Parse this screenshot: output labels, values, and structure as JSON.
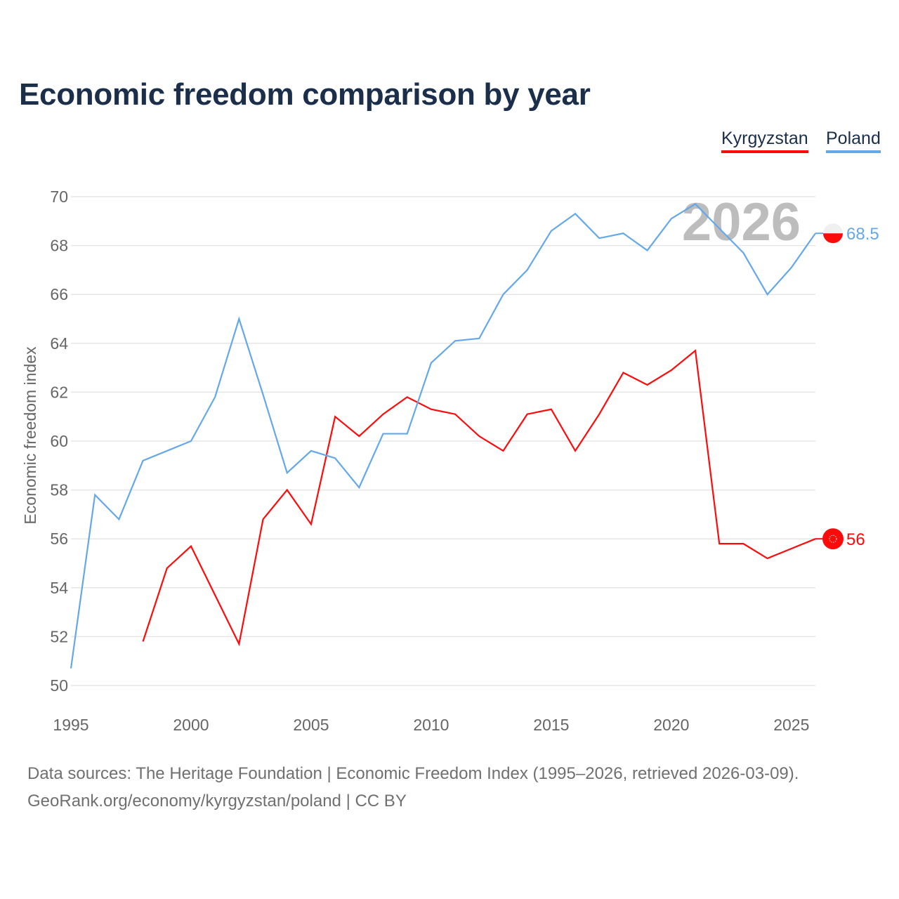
{
  "chart_data": {
    "type": "line",
    "title": "Economic freedom comparison by year",
    "xlabel": "",
    "ylabel": "Economic freedom index",
    "xlim": [
      1995,
      2026
    ],
    "ylim": [
      50,
      70
    ],
    "x_ticks": [
      "1995",
      "2000",
      "2005",
      "2010",
      "2015",
      "2020",
      "2025"
    ],
    "y_ticks": [
      "50",
      "52",
      "54",
      "56",
      "58",
      "60",
      "62",
      "64",
      "66",
      "68",
      "70"
    ],
    "grid": true,
    "legend_position": "top-right",
    "watermark_year": "2026",
    "series": [
      {
        "name": "Kyrgyzstan",
        "color": "#ff0a0a",
        "end_label": "56",
        "x": [
          1998,
          1999,
          2000,
          2001,
          2002,
          2003,
          2004,
          2005,
          2006,
          2007,
          2008,
          2009,
          2010,
          2011,
          2012,
          2013,
          2014,
          2015,
          2016,
          2017,
          2018,
          2019,
          2020,
          2021,
          2022,
          2023,
          2024,
          2025,
          2026
        ],
        "values": [
          51.8,
          54.8,
          55.7,
          53.7,
          51.7,
          56.8,
          58.0,
          56.6,
          61.0,
          60.2,
          61.1,
          61.8,
          61.3,
          61.1,
          60.2,
          59.6,
          61.1,
          61.3,
          59.6,
          61.1,
          62.8,
          62.3,
          62.9,
          63.7,
          55.8,
          55.8,
          55.2,
          55.6,
          56.0
        ]
      },
      {
        "name": "Poland",
        "color": "#65a8ea",
        "end_label": "68.5",
        "x": [
          1995,
          1996,
          1997,
          1998,
          1999,
          2000,
          2001,
          2002,
          2003,
          2004,
          2005,
          2006,
          2007,
          2008,
          2009,
          2010,
          2011,
          2012,
          2013,
          2014,
          2015,
          2016,
          2017,
          2018,
          2019,
          2020,
          2021,
          2022,
          2023,
          2024,
          2025,
          2026
        ],
        "values": [
          50.7,
          57.8,
          56.8,
          59.2,
          59.6,
          60.0,
          61.8,
          65.0,
          61.9,
          58.7,
          59.6,
          59.3,
          58.1,
          60.3,
          60.3,
          63.2,
          64.1,
          64.2,
          66.0,
          67.0,
          68.6,
          69.3,
          68.3,
          68.5,
          67.8,
          69.1,
          69.7,
          68.7,
          67.7,
          66.0,
          67.1,
          68.5
        ]
      }
    ]
  },
  "sources": {
    "line1": "Data sources: The Heritage Foundation | Economic Freedom Index (1995–2026, retrieved 2026-03-09).",
    "line2": "GeoRank.org/economy/kyrgyzstan/poland | CC BY"
  }
}
